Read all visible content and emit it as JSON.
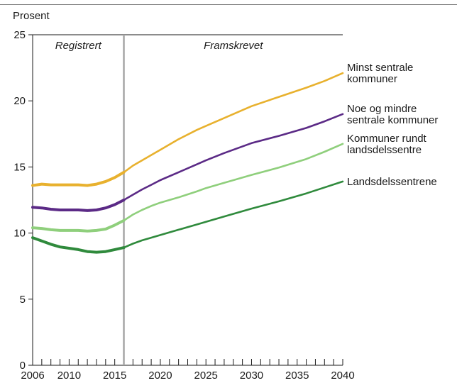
{
  "chart_data": {
    "type": "line",
    "ylabel": "Prosent",
    "ylim": [
      0,
      25
    ],
    "yticks": [
      0,
      5,
      10,
      15,
      20,
      25
    ],
    "xlim": [
      2006,
      2040
    ],
    "xticks": [
      2006,
      2010,
      2015,
      2020,
      2025,
      2030,
      2035,
      2040
    ],
    "divider_year": 2016,
    "periods": [
      {
        "label": "Registrert"
      },
      {
        "label": "Framskrevet"
      }
    ],
    "grid": false,
    "series": [
      {
        "name": "Minst sentrale kommuner",
        "label_lines": [
          "Minst sentrale",
          "kommuner"
        ],
        "color": "#e8b12e",
        "x": [
          2006,
          2007,
          2008,
          2009,
          2010,
          2011,
          2012,
          2013,
          2014,
          2015,
          2016,
          2017,
          2018,
          2019,
          2020,
          2022,
          2024,
          2025,
          2027,
          2030,
          2033,
          2036,
          2038,
          2040
        ],
        "y": [
          13.6,
          13.7,
          13.65,
          13.65,
          13.65,
          13.65,
          13.6,
          13.7,
          13.9,
          14.2,
          14.6,
          15.1,
          15.5,
          15.9,
          16.3,
          17.1,
          17.8,
          18.1,
          18.7,
          19.6,
          20.3,
          21.0,
          21.5,
          22.1
        ]
      },
      {
        "name": "Noe og mindre sentrale kommuner",
        "label_lines": [
          "Noe og mindre",
          "sentrale kommuner"
        ],
        "color": "#5b2a86",
        "x": [
          2006,
          2007,
          2008,
          2009,
          2010,
          2011,
          2012,
          2013,
          2014,
          2015,
          2016,
          2017,
          2018,
          2019,
          2020,
          2022,
          2024,
          2025,
          2027,
          2030,
          2033,
          2036,
          2038,
          2040
        ],
        "y": [
          11.95,
          11.9,
          11.8,
          11.75,
          11.75,
          11.75,
          11.7,
          11.75,
          11.9,
          12.15,
          12.5,
          12.9,
          13.3,
          13.65,
          14.0,
          14.6,
          15.2,
          15.5,
          16.05,
          16.8,
          17.35,
          17.95,
          18.45,
          19.0
        ]
      },
      {
        "name": "Kommuner rundt landsdelssentre",
        "label_lines": [
          "Kommuner rundt",
          "landsdelssentre"
        ],
        "color": "#8fcf7c",
        "x": [
          2006,
          2007,
          2008,
          2009,
          2010,
          2011,
          2012,
          2013,
          2014,
          2015,
          2016,
          2017,
          2018,
          2019,
          2020,
          2022,
          2024,
          2025,
          2027,
          2030,
          2033,
          2036,
          2038,
          2040
        ],
        "y": [
          10.4,
          10.35,
          10.25,
          10.2,
          10.2,
          10.2,
          10.15,
          10.2,
          10.3,
          10.6,
          10.95,
          11.4,
          11.75,
          12.05,
          12.3,
          12.7,
          13.15,
          13.4,
          13.8,
          14.4,
          14.95,
          15.6,
          16.15,
          16.75
        ]
      },
      {
        "name": "Landsdelssentrene",
        "label_lines": [
          "Landsdelssentrene"
        ],
        "color": "#2f8a3c",
        "x": [
          2006,
          2007,
          2008,
          2009,
          2010,
          2011,
          2012,
          2013,
          2014,
          2015,
          2016,
          2017,
          2018,
          2019,
          2020,
          2022,
          2024,
          2025,
          2027,
          2030,
          2033,
          2036,
          2038,
          2040
        ],
        "y": [
          9.65,
          9.4,
          9.15,
          8.95,
          8.85,
          8.75,
          8.6,
          8.55,
          8.6,
          8.75,
          8.9,
          9.2,
          9.45,
          9.65,
          9.85,
          10.25,
          10.65,
          10.85,
          11.25,
          11.85,
          12.4,
          13.0,
          13.45,
          13.9
        ]
      }
    ]
  }
}
